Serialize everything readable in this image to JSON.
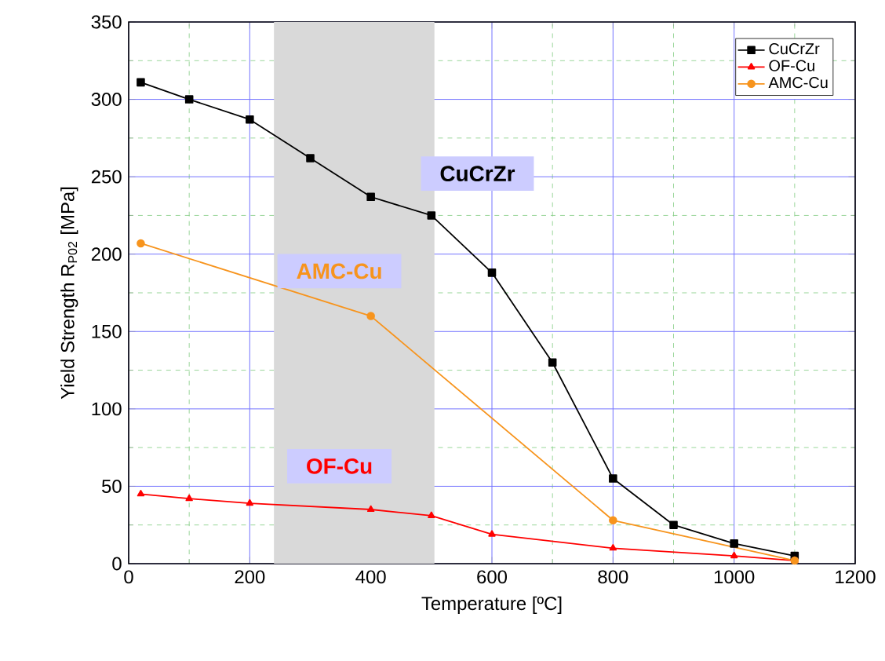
{
  "chart_data": {
    "type": "line",
    "xlabel": "Temperature [ºC]",
    "ylabel": "Yield Strength R$_{P02}$ [MPa]",
    "xlim": [
      0,
      1200
    ],
    "ylim": [
      0,
      350
    ],
    "xticks": [
      0,
      {
        "value": 100,
        "label": null
      },
      200,
      {
        "value": 300,
        "label": null
      },
      400,
      {
        "value": 500,
        "label": null
      },
      600,
      {
        "value": 700,
        "label": null
      },
      800,
      {
        "value": 900,
        "label": null
      },
      1000,
      {
        "value": 1100,
        "label": null
      },
      1200
    ],
    "yticks": [
      0,
      {
        "value": 25,
        "label": null
      },
      50,
      {
        "value": 75,
        "label": null
      },
      100,
      {
        "value": 125,
        "label": null
      },
      150,
      {
        "value": 175,
        "label": null
      },
      200,
      {
        "value": 225,
        "label": null
      },
      250,
      {
        "value": 275,
        "label": null
      },
      300,
      {
        "value": 325,
        "label": null
      },
      350
    ],
    "grid": true,
    "legend": "top right",
    "series": [
      {
        "name": "CuCrZr",
        "color": "#000000",
        "marker": "square",
        "x": [
          20,
          100,
          200,
          300,
          400,
          500,
          600,
          700,
          800,
          900,
          1000,
          1100
        ],
        "values": [
          311,
          300,
          287,
          262,
          237,
          225,
          188,
          130,
          55,
          25,
          13,
          5
        ]
      },
      {
        "name": "OF-Cu",
        "color": "#ff0000",
        "marker": "triangle",
        "x": [
          20,
          100,
          200,
          400,
          500,
          600,
          800,
          1000,
          1100
        ],
        "values": [
          45,
          42,
          39,
          35,
          31,
          19,
          10,
          5,
          2
        ]
      },
      {
        "name": "AMC-Cu",
        "color": "#f7941d",
        "marker": "circle",
        "x": [
          20,
          400,
          800,
          1100
        ],
        "values": [
          207,
          160,
          28,
          2
        ]
      }
    ],
    "bands": [
      {
        "axis": "x",
        "from": 240,
        "to": 505,
        "color": "#d9d9d9"
      }
    ],
    "annotations": [
      "CuCrZr",
      "OF-Cu",
      "AMC-Cu"
    ]
  }
}
